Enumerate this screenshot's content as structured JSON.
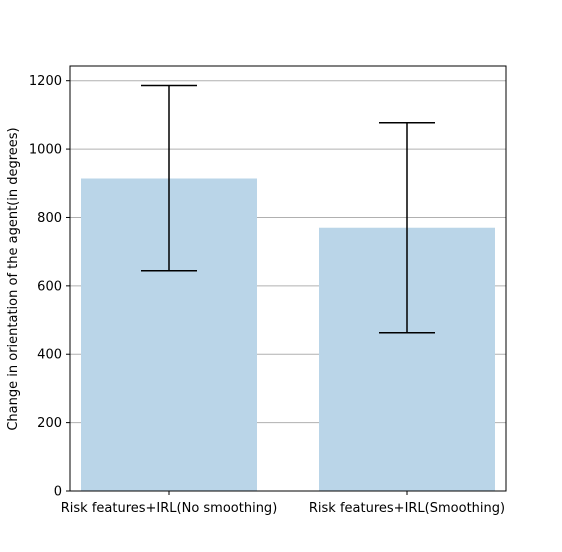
{
  "chart_data": {
    "type": "bar",
    "title": "",
    "xlabel": "",
    "ylabel": "Change in orientation of the agent(in degrees)",
    "categories": [
      "Risk features+IRL(No smoothing)",
      "Risk features+IRL(Smoothing)"
    ],
    "values": [
      914,
      770
    ],
    "error_low": [
      644,
      463
    ],
    "error_high": [
      1186,
      1077
    ],
    "ylim": [
      0,
      1243
    ],
    "yticks": [
      0,
      200,
      400,
      600,
      800,
      1000,
      1200
    ],
    "ytick_labels": [
      "0",
      "200",
      "400",
      "600",
      "800",
      "1000",
      "1200"
    ],
    "grid": "horizontal",
    "colors": {
      "bar": "#bad5e8",
      "error_bar": "#000000",
      "grid": "#b0b0b0",
      "axis": "#000000"
    }
  }
}
